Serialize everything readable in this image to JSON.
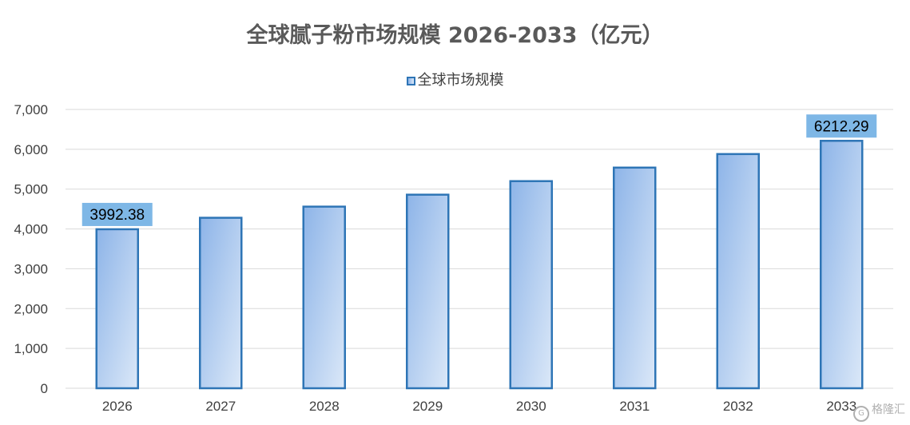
{
  "chart_data": {
    "type": "bar",
    "title": "全球腻子粉市场规模 2026-2033（亿元）",
    "categories": [
      "2026",
      "2027",
      "2028",
      "2029",
      "2030",
      "2031",
      "2032",
      "2033"
    ],
    "series": [
      {
        "name": "全球市场规模",
        "values": [
          3992.38,
          4280,
          4560,
          4860,
          5200,
          5540,
          5880,
          6212.29
        ],
        "data_labels": [
          "3992.38",
          "",
          "",
          "",
          "",
          "",
          "",
          "6212.29"
        ]
      }
    ],
    "y_ticks": [
      "0",
      "1,000",
      "2,000",
      "3,000",
      "4,000",
      "5,000",
      "6,000",
      "7,000"
    ],
    "ylim": [
      0,
      7000
    ],
    "xlabel": "",
    "ylabel": "",
    "grid": true,
    "legend_position": "top-center",
    "colors": {
      "bar_fill_top": "#8db4e8",
      "bar_fill_bottom": "#dbe8f8",
      "bar_border": "#2e75b6",
      "label_box": "#7eb7e6",
      "grid": "#d9d9d9"
    }
  },
  "watermark": {
    "text": "格隆汇",
    "icon": "gelonghui-logo-icon"
  }
}
